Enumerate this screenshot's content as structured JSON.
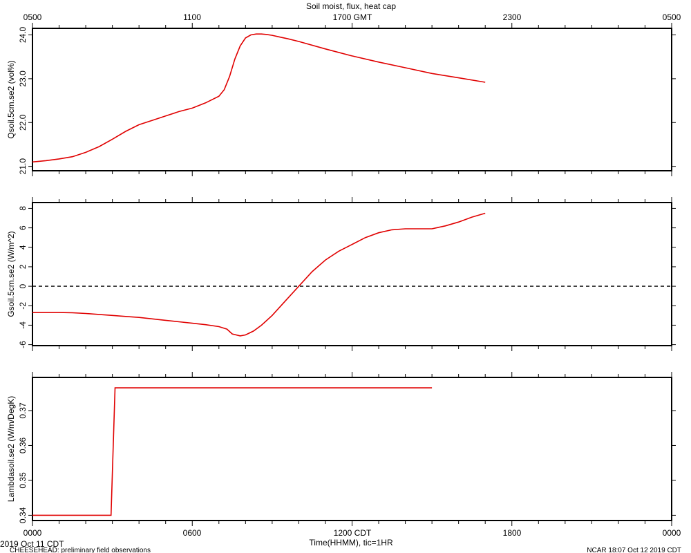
{
  "header": {
    "title": "Soil moist, flux, heat cap",
    "top_ticks": [
      "0500",
      "1100",
      "1700 GMT",
      "2300",
      "0500"
    ],
    "bottom_ticks": [
      "0000",
      "0600",
      "1200 CDT",
      "1800",
      "0000"
    ],
    "xlabel": "Time(HHMM), tic=1HR",
    "date_label": "2019 Oct 11 CDT",
    "project_label": "CHEESEHEAD: preliminary field observations",
    "credit_label": "NCAR 18:07 Oct 12 2019 CDT"
  },
  "chart_data": [
    {
      "type": "line",
      "ylabel": "Qsoil.5cm.se2 (vol%)",
      "ylim": [
        20.9,
        24.15
      ],
      "yticks": [
        21.0,
        22.0,
        23.0,
        24.0
      ],
      "ytick_labels": [
        "21.0",
        "22.0",
        "23.0",
        "24.0"
      ],
      "xlim": [
        0,
        24
      ],
      "series": [
        {
          "x": [
            0,
            0.5,
            1,
            1.5,
            2,
            2.5,
            3,
            3.5,
            4,
            4.5,
            5,
            5.5,
            6,
            6.5,
            7,
            7.2,
            7.4,
            7.6,
            7.8,
            8,
            8.2,
            8.4,
            8.6,
            8.8,
            9,
            9.3,
            9.6,
            10,
            11,
            12,
            13,
            14,
            15,
            16,
            17
          ],
          "y": [
            21.1,
            21.13,
            21.17,
            21.22,
            21.32,
            21.45,
            21.62,
            21.8,
            21.95,
            22.05,
            22.15,
            22.25,
            22.33,
            22.45,
            22.6,
            22.75,
            23.05,
            23.45,
            23.75,
            23.93,
            24.0,
            24.02,
            24.02,
            24.01,
            23.99,
            23.95,
            23.91,
            23.85,
            23.68,
            23.52,
            23.38,
            23.25,
            23.12,
            23.02,
            22.92
          ]
        }
      ]
    },
    {
      "type": "line",
      "ylabel": "Gsoil.5cm.se2 (W/m^2)",
      "ylim": [
        -6.1,
        8.6
      ],
      "yticks": [
        -6,
        -4,
        -2,
        0,
        2,
        4,
        6,
        8
      ],
      "ytick_labels": [
        "-6",
        "-4",
        "-2",
        "0",
        "2",
        "4",
        "6",
        "8"
      ],
      "reference_line": 0,
      "xlim": [
        0,
        24
      ],
      "series": [
        {
          "x": [
            0,
            1,
            1.5,
            2,
            2.5,
            3,
            3.5,
            4,
            4.5,
            5,
            5.5,
            6,
            6.5,
            7,
            7.3,
            7.5,
            7.8,
            8,
            8.3,
            8.6,
            9,
            9.5,
            10,
            10.5,
            11,
            11.5,
            12,
            12.5,
            13,
            13.5,
            14,
            14.5,
            15,
            15.5,
            16,
            16.5,
            17
          ],
          "y": [
            -2.7,
            -2.7,
            -2.72,
            -2.8,
            -2.9,
            -3.0,
            -3.1,
            -3.2,
            -3.35,
            -3.5,
            -3.65,
            -3.8,
            -3.95,
            -4.15,
            -4.4,
            -4.9,
            -5.1,
            -5.0,
            -4.6,
            -4.0,
            -3.0,
            -1.5,
            0,
            1.5,
            2.7,
            3.6,
            4.3,
            5.0,
            5.5,
            5.8,
            5.9,
            5.9,
            5.9,
            6.2,
            6.6,
            7.1,
            7.5
          ]
        }
      ]
    },
    {
      "type": "line",
      "ylabel": "Lambdasoil.se2 (W/m/DegK)",
      "ylim": [
        0.3385,
        0.3795
      ],
      "yticks": [
        0.34,
        0.35,
        0.36,
        0.37
      ],
      "ytick_labels": [
        "0.34",
        "0.35",
        "0.36",
        "0.37"
      ],
      "xlim": [
        0,
        24
      ],
      "series": [
        {
          "x": [
            0,
            2.95,
            3.1,
            15
          ],
          "y": [
            0.34,
            0.34,
            0.3765,
            0.3765
          ]
        }
      ]
    }
  ]
}
